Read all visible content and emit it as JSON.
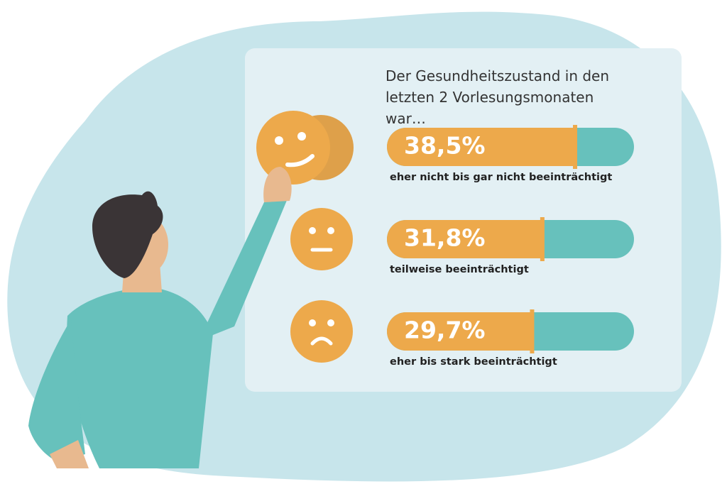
{
  "chart_data": {
    "type": "bar",
    "title": "Der Gesundheitszustand in den letzten 2 Vorlesungsmonaten war…",
    "categories": [
      "eher nicht bis gar nicht beeinträchtigt",
      "teilweise beeinträchtigt",
      "eher bis stark beeinträchtigt"
    ],
    "values": [
      38.5,
      31.8,
      29.7
    ],
    "value_labels": [
      "38,5%",
      "31,8%",
      "29,7%"
    ],
    "color": "#eda94b",
    "track_color": "#67c1bc"
  }
}
